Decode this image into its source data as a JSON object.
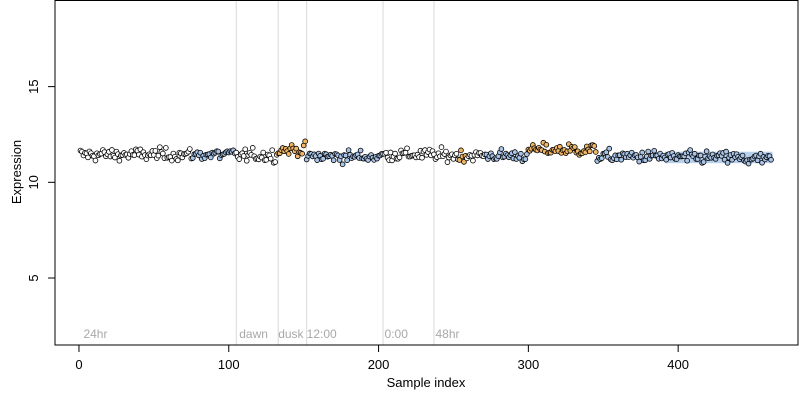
{
  "chart_data": {
    "type": "scatter",
    "xlabel": "Sample index",
    "ylabel": "Expression",
    "xlim": [
      -16,
      480
    ],
    "ylim": [
      1.5,
      19.5
    ],
    "x_ticks": [
      0,
      100,
      200,
      300,
      400
    ],
    "y_ticks": [
      5,
      10,
      15
    ],
    "grid": false,
    "point_style": "open circle, black outline, light fill",
    "colors": {
      "fill_default": "#ffffff",
      "fill_blue": "#a8c4e8",
      "fill_orange": "#f2b766",
      "outline": "#000000",
      "band": "#a8c4e8",
      "vline": "#d8d8d8",
      "annotation": "#a8a8a8"
    },
    "n_points": 462,
    "baseline_y": 11.45,
    "vlines": [
      105,
      133,
      152,
      203,
      237
    ],
    "annotations": [
      {
        "x": 3,
        "label": "24hr"
      },
      {
        "x": 107,
        "label": "dawn"
      },
      {
        "x": 133,
        "label": "dusk"
      },
      {
        "x": 152,
        "label": "12:00"
      },
      {
        "x": 204,
        "label": "0:00"
      },
      {
        "x": 238,
        "label": "48hr"
      }
    ],
    "segment_means": [
      {
        "start": 1,
        "end": 104,
        "y": 11.45
      },
      {
        "start": 105,
        "end": 132,
        "y": 11.4
      },
      {
        "start": 133,
        "end": 151,
        "y": 11.7
      },
      {
        "start": 152,
        "end": 202,
        "y": 11.35
      },
      {
        "start": 203,
        "end": 236,
        "y": 11.45
      },
      {
        "start": 237,
        "end": 300,
        "y": 11.4
      },
      {
        "start": 301,
        "end": 345,
        "y": 11.7
      },
      {
        "start": 346,
        "end": 390,
        "y": 11.35
      },
      {
        "start": 391,
        "end": 440,
        "y": 11.3
      },
      {
        "start": 441,
        "end": 462,
        "y": 11.2
      }
    ],
    "band": {
      "x_start": 391,
      "x_end": 463,
      "y_low": 11.0,
      "y_high": 11.6
    },
    "orange_ranges": [
      [
        133,
        151
      ],
      [
        254,
        258
      ],
      [
        300,
        345
      ]
    ],
    "blue_ranges": [
      [
        76,
        104
      ],
      [
        152,
        202
      ],
      [
        272,
        300
      ],
      [
        346,
        462
      ]
    ]
  }
}
